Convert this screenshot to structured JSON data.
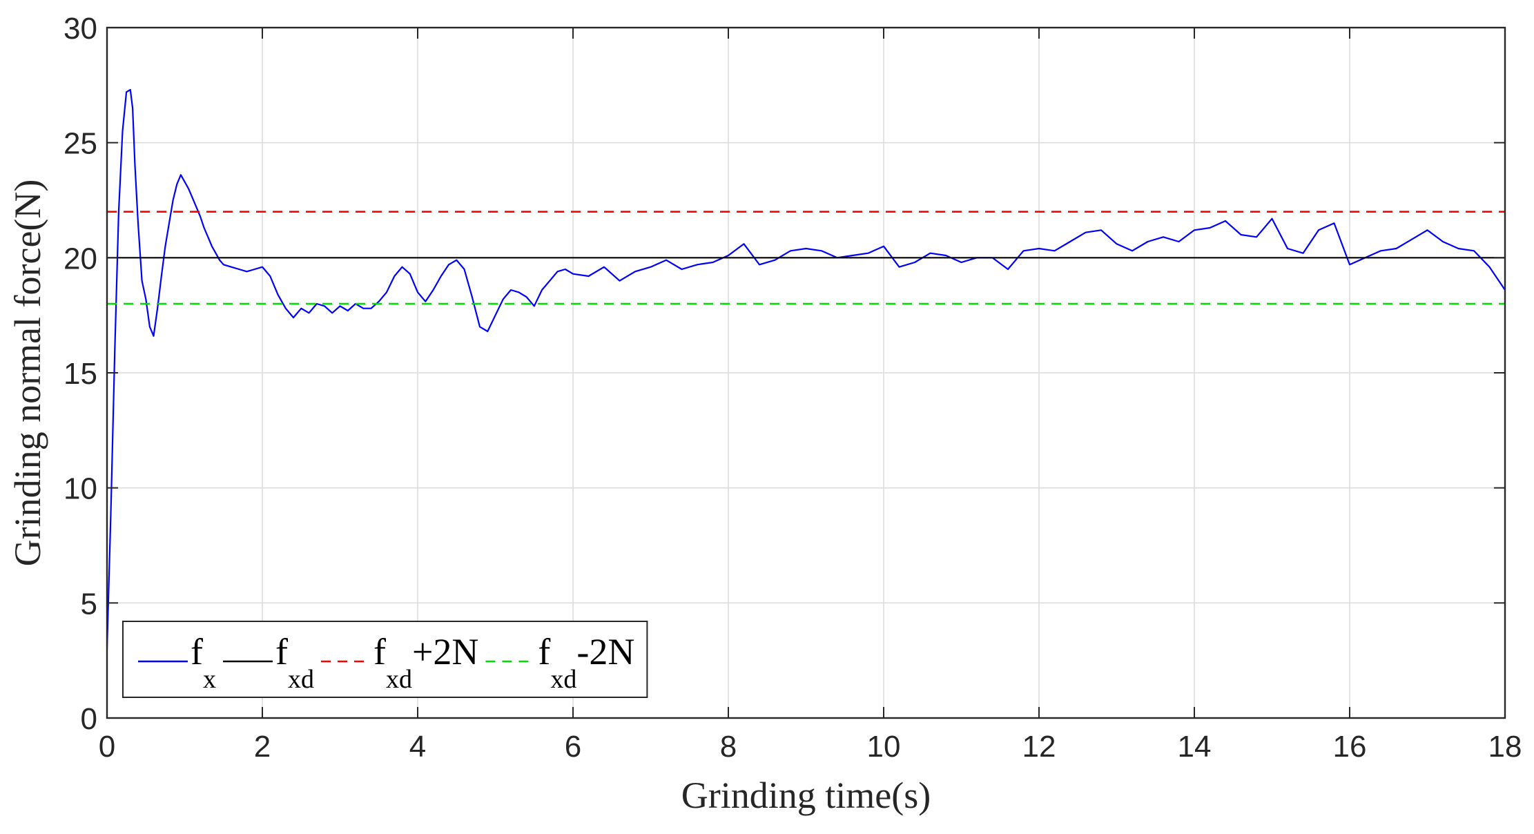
{
  "chart_data": {
    "type": "line",
    "xlabel": "Grinding time(s)",
    "ylabel": "Grinding normal force(N)",
    "xlim": [
      0,
      18
    ],
    "ylim": [
      0,
      30
    ],
    "xticks": [
      0,
      2,
      4,
      6,
      8,
      10,
      12,
      14,
      16,
      18
    ],
    "yticks": [
      0,
      5,
      10,
      15,
      20,
      25,
      30
    ],
    "grid": true,
    "legend_placement": "bottom-left",
    "legend_orientation": "horizontal",
    "series": [
      {
        "name": "f_x",
        "legend_main": "f",
        "legend_sub": "x",
        "legend_suffix": "",
        "color": "#0000ff",
        "style": "solid",
        "x": [
          0,
          0.05,
          0.1,
          0.15,
          0.2,
          0.25,
          0.3,
          0.33,
          0.36,
          0.4,
          0.45,
          0.5,
          0.55,
          0.6,
          0.65,
          0.7,
          0.75,
          0.8,
          0.85,
          0.9,
          0.95,
          1.0,
          1.05,
          1.1,
          1.15,
          1.2,
          1.25,
          1.3,
          1.35,
          1.4,
          1.45,
          1.5,
          1.6,
          1.7,
          1.8,
          1.9,
          2.0,
          2.1,
          2.2,
          2.3,
          2.4,
          2.5,
          2.6,
          2.7,
          2.8,
          2.9,
          3.0,
          3.1,
          3.2,
          3.3,
          3.4,
          3.5,
          3.6,
          3.7,
          3.8,
          3.9,
          4.0,
          4.1,
          4.2,
          4.3,
          4.4,
          4.5,
          4.6,
          4.7,
          4.8,
          4.9,
          5.0,
          5.1,
          5.2,
          5.3,
          5.4,
          5.5,
          5.6,
          5.7,
          5.8,
          5.9,
          6.0,
          6.2,
          6.4,
          6.6,
          6.8,
          7.0,
          7.2,
          7.4,
          7.6,
          7.8,
          8.0,
          8.2,
          8.4,
          8.6,
          8.8,
          9.0,
          9.2,
          9.4,
          9.6,
          9.8,
          10.0,
          10.2,
          10.4,
          10.6,
          10.8,
          11.0,
          11.2,
          11.4,
          11.6,
          11.8,
          12.0,
          12.2,
          12.4,
          12.6,
          12.8,
          13.0,
          13.2,
          13.4,
          13.6,
          13.8,
          14.0,
          14.2,
          14.4,
          14.6,
          14.8,
          15.0,
          15.2,
          15.4,
          15.6,
          15.8,
          16.0,
          16.2,
          16.4,
          16.6,
          16.8,
          17.0,
          17.2,
          17.4,
          17.6,
          17.8,
          18.0
        ],
        "y": [
          3.0,
          9.0,
          16.0,
          22.0,
          25.5,
          27.2,
          27.3,
          26.5,
          24.0,
          21.5,
          19.0,
          18.2,
          17.0,
          16.6,
          17.8,
          19.2,
          20.5,
          21.5,
          22.5,
          23.2,
          23.6,
          23.3,
          23.0,
          22.6,
          22.2,
          21.8,
          21.3,
          20.9,
          20.5,
          20.2,
          19.9,
          19.7,
          19.6,
          19.5,
          19.4,
          19.5,
          19.6,
          19.2,
          18.4,
          17.8,
          17.4,
          17.8,
          17.6,
          18.0,
          17.9,
          17.6,
          17.9,
          17.7,
          18.0,
          17.8,
          17.8,
          18.1,
          18.5,
          19.2,
          19.6,
          19.3,
          18.5,
          18.1,
          18.6,
          19.2,
          19.7,
          19.9,
          19.5,
          18.3,
          17.0,
          16.8,
          17.5,
          18.2,
          18.6,
          18.5,
          18.3,
          17.9,
          18.6,
          19.0,
          19.4,
          19.5,
          19.3,
          19.2,
          19.6,
          19.0,
          19.4,
          19.6,
          19.9,
          19.5,
          19.7,
          19.8,
          20.1,
          20.6,
          19.7,
          19.9,
          20.3,
          20.4,
          20.3,
          20.0,
          20.1,
          20.2,
          20.5,
          19.6,
          19.8,
          20.2,
          20.1,
          19.8,
          20.0,
          20.0,
          19.5,
          20.3,
          20.4,
          20.3,
          20.7,
          21.1,
          21.2,
          20.6,
          20.3,
          20.7,
          20.9,
          20.7,
          21.2,
          21.3,
          21.6,
          21.0,
          20.9,
          21.7,
          20.4,
          20.2,
          21.2,
          21.5,
          19.7,
          20.0,
          20.3,
          20.4,
          20.8,
          21.2,
          20.7,
          20.4,
          20.3,
          19.6,
          18.6
        ]
      },
      {
        "name": "f_xd",
        "legend_main": "f",
        "legend_sub": "xd",
        "legend_suffix": "",
        "color": "#000000",
        "style": "solid",
        "x": [
          0,
          18
        ],
        "y": [
          20,
          20
        ]
      },
      {
        "name": "f_xd+2N",
        "legend_main": "f",
        "legend_sub": "xd",
        "legend_suffix": "+2N",
        "color": "#ff0000",
        "style": "dashed",
        "x": [
          0,
          18
        ],
        "y": [
          22,
          22
        ]
      },
      {
        "name": "f_xd-2N",
        "legend_main": "f",
        "legend_sub": "xd",
        "legend_suffix": "-2N",
        "color": "#00dd00",
        "style": "dashed",
        "x": [
          0,
          18
        ],
        "y": [
          18,
          18
        ]
      }
    ]
  }
}
